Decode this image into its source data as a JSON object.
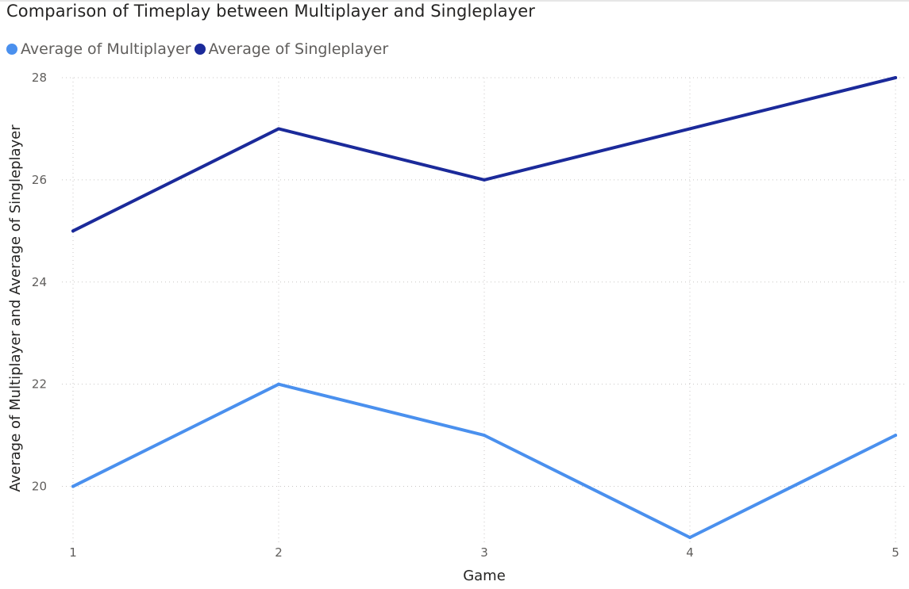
{
  "chart_data": {
    "type": "line",
    "title": "Comparison of Timeplay between Multiplayer and Singleplayer",
    "xlabel": "Game",
    "ylabel": "Average of Multiplayer and Average of Singleplayer",
    "x": [
      1,
      2,
      3,
      4,
      5
    ],
    "x_tick_labels": [
      "1",
      "2",
      "3",
      "4",
      "5"
    ],
    "y_ticks": [
      20,
      22,
      24,
      26,
      28
    ],
    "ylim": [
      19,
      28
    ],
    "grid": true,
    "legend_position": "top-left",
    "series": [
      {
        "name": "Average of Multiplayer",
        "color": "#4a90ee",
        "values": [
          20,
          22,
          21,
          19,
          21
        ]
      },
      {
        "name": "Average of Singleplayer",
        "color": "#1b2a9a",
        "values": [
          25,
          27,
          26,
          27,
          28
        ]
      }
    ]
  }
}
